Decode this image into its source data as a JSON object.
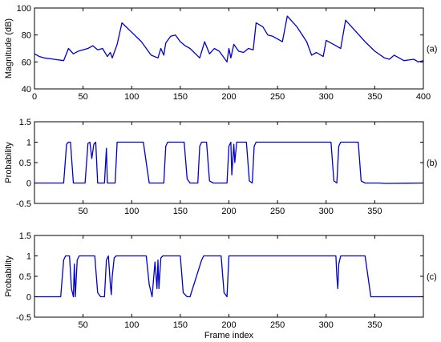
{
  "chart_data": [
    {
      "type": "line",
      "panel_label": "(a)",
      "xlabel": "",
      "ylabel": "Magnitude (dB)",
      "xlim": [
        0,
        400
      ],
      "ylim": [
        40,
        100
      ],
      "xticks": [
        0,
        50,
        100,
        150,
        200,
        250,
        300,
        350,
        400
      ],
      "yticks": [
        40,
        60,
        80,
        100
      ],
      "grid": false,
      "series": [
        {
          "color": "#0000cc",
          "x": [
            0,
            5,
            10,
            20,
            30,
            35,
            40,
            45,
            55,
            60,
            65,
            70,
            75,
            78,
            80,
            85,
            90,
            100,
            110,
            120,
            127,
            130,
            133,
            135,
            140,
            145,
            150,
            155,
            160,
            170,
            175,
            180,
            185,
            190,
            198,
            200,
            202,
            205,
            210,
            215,
            220,
            225,
            228,
            235,
            240,
            245,
            255,
            260,
            265,
            270,
            280,
            285,
            290,
            297,
            300,
            310,
            315,
            320,
            325,
            330,
            340,
            350,
            360,
            365,
            370,
            380,
            390,
            395,
            400
          ],
          "y": [
            66,
            64,
            63,
            62,
            61,
            70,
            66,
            68,
            70,
            72,
            69,
            70,
            64,
            67,
            63,
            73,
            89,
            82,
            75,
            65,
            63,
            70,
            65,
            74,
            79,
            80,
            75,
            72,
            70,
            63,
            75,
            66,
            70,
            68,
            60,
            70,
            63,
            73,
            68,
            67,
            70,
            69,
            89,
            86,
            80,
            79,
            75,
            94,
            90,
            86,
            75,
            65,
            67,
            64,
            76,
            72,
            70,
            91,
            87,
            83,
            75,
            68,
            63,
            62,
            65,
            61,
            62,
            60,
            61
          ]
        }
      ]
    },
    {
      "type": "line",
      "panel_label": "(b)",
      "xlabel": "",
      "ylabel": "Probability",
      "xlim": [
        0,
        400
      ],
      "ylim": [
        -0.5,
        1.5
      ],
      "xticks": [
        50,
        100,
        150,
        200,
        250,
        300,
        350
      ],
      "yticks": [
        -0.5,
        0,
        0.5,
        1,
        1.5
      ],
      "grid": false,
      "series": [
        {
          "color": "#0000cc",
          "x": [
            0,
            30,
            33,
            35,
            37,
            40,
            52,
            55,
            57,
            59,
            61,
            63,
            65,
            72,
            74,
            75,
            77,
            80,
            83,
            85,
            112,
            115,
            118,
            133,
            135,
            137,
            154,
            157,
            160,
            168,
            170,
            172,
            177,
            180,
            184,
            198,
            200,
            202,
            203,
            205,
            206,
            208,
            218,
            221,
            224,
            226,
            228,
            305,
            308,
            311,
            313,
            315,
            333,
            336,
            340,
            345,
            355,
            360,
            400
          ],
          "y": [
            0,
            0,
            0.95,
            1,
            1,
            0,
            0,
            0.97,
            1,
            0.6,
            0.95,
            1,
            0,
            0,
            0.85,
            0,
            0,
            0,
            0,
            1,
            1,
            0.5,
            0,
            0,
            0.9,
            1,
            1,
            0.1,
            0,
            0,
            0.9,
            1,
            1,
            0.05,
            0,
            0,
            0.9,
            1,
            0.2,
            0.95,
            0.5,
            1,
            1,
            0.05,
            0,
            0.9,
            1,
            1,
            0.05,
            0,
            0.9,
            1,
            1,
            0.05,
            0,
            0,
            0,
            -0.01,
            0
          ]
        }
      ]
    },
    {
      "type": "line",
      "panel_label": "(c)",
      "xlabel": "Frame index",
      "ylabel": "Probability",
      "xlim": [
        0,
        400
      ],
      "ylim": [
        -0.5,
        1.5
      ],
      "xticks": [
        50,
        100,
        150,
        200,
        250,
        300,
        350
      ],
      "yticks": [
        -0.5,
        0,
        0.5,
        1,
        1.5
      ],
      "grid": false,
      "series": [
        {
          "color": "#0000cc",
          "x": [
            0,
            27,
            30,
            32,
            36,
            38,
            40,
            41,
            42,
            44,
            46,
            62,
            65,
            68,
            72,
            74,
            76,
            78,
            79,
            80,
            82,
            84,
            115,
            118,
            121,
            124,
            126,
            127,
            128,
            130,
            132,
            150,
            153,
            157,
            160,
            172,
            174,
            176,
            192,
            195,
            198,
            200,
            310,
            311,
            312,
            313,
            315,
            340,
            343,
            346,
            400
          ],
          "y": [
            0,
            0,
            0.9,
            1,
            1,
            0.2,
            0,
            0.8,
            0,
            0.9,
            1,
            1,
            0.1,
            0,
            0,
            0.9,
            1,
            0.3,
            0.05,
            0.5,
            0.95,
            1,
            1,
            0.3,
            0,
            0.85,
            0.2,
            0.9,
            0.2,
            0.95,
            1,
            1,
            0.1,
            0,
            0,
            0.9,
            1,
            1,
            1,
            0.1,
            0,
            1,
            1,
            0.5,
            0.2,
            0.8,
            1,
            1,
            0.5,
            0,
            0
          ]
        }
      ]
    }
  ]
}
